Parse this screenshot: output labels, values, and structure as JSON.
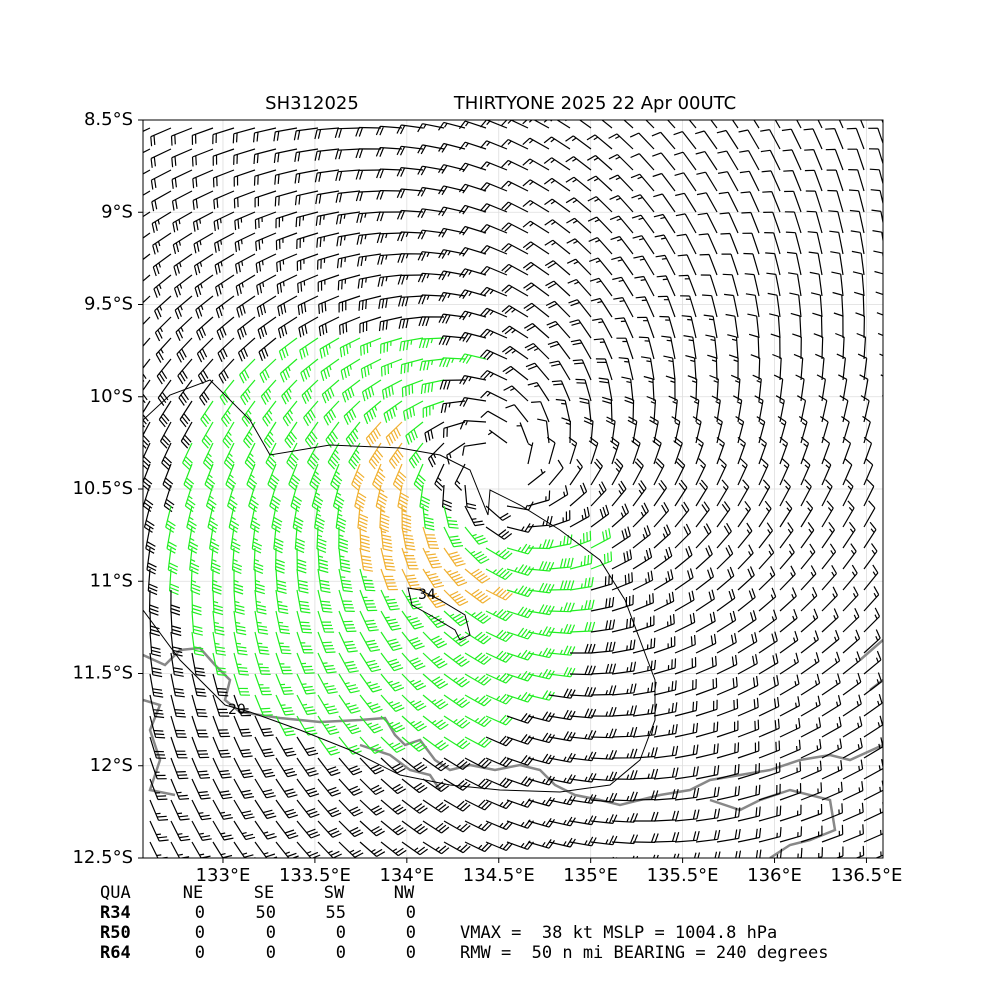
{
  "chart_data": {
    "type": "barb_map",
    "title_left": "SH312025",
    "title_right": "THIRTYONE 2025 22 Apr 00UTC",
    "xlim": [
      132.565,
      136.59
    ],
    "ylim": [
      -12.5,
      -8.5
    ],
    "xticks": [
      {
        "value": 133,
        "label": "133°E"
      },
      {
        "value": 133.5,
        "label": "133.5°E"
      },
      {
        "value": 134,
        "label": "134°E"
      },
      {
        "value": 134.5,
        "label": "134.5°E"
      },
      {
        "value": 135,
        "label": "135°E"
      },
      {
        "value": 135.5,
        "label": "135.5°E"
      },
      {
        "value": 136,
        "label": "136°E"
      },
      {
        "value": 136.5,
        "label": "136.5°E"
      }
    ],
    "yticks": [
      {
        "value": -8.5,
        "label": "8.5°S"
      },
      {
        "value": -9,
        "label": "9°S"
      },
      {
        "value": -9.5,
        "label": "9.5°S"
      },
      {
        "value": -10,
        "label": "10°S"
      },
      {
        "value": -10.5,
        "label": "10.5°S"
      },
      {
        "value": -11,
        "label": "11°S"
      },
      {
        "value": -11.5,
        "label": "11.5°S"
      },
      {
        "value": -12,
        "label": "12°S"
      },
      {
        "value": -12.5,
        "label": "12.5°S"
      }
    ],
    "grid": true,
    "contour_labels": [
      "34",
      "20"
    ]
  },
  "table": {
    "header": [
      "QUA",
      "NE",
      "SE",
      "SW",
      "NW"
    ],
    "rows": [
      [
        "R34",
        "0",
        "50",
        "55",
        "0"
      ],
      [
        "R50",
        "0",
        "0",
        "0",
        "0"
      ],
      [
        "R64",
        "0",
        "0",
        "0",
        "0"
      ]
    ],
    "info": [
      "VMAX =  38 kt MSLP = 1004.8 hPa",
      "RMW =  50 n mi BEARING = 240 degrees"
    ]
  }
}
